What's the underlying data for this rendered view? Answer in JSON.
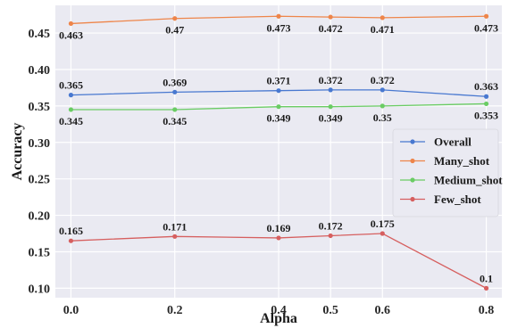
{
  "chart_data": {
    "type": "line",
    "title": "",
    "xlabel": "Alpha",
    "ylabel": "Accuracy",
    "x": [
      0.0,
      0.2,
      0.4,
      0.5,
      0.6,
      0.8
    ],
    "x_tick_labels": [
      "0.0",
      "0.2",
      "0.4",
      "0.5",
      "0.6",
      "0.8"
    ],
    "xlim": [
      -0.03,
      0.83
    ],
    "ylim": [
      0.087,
      0.488
    ],
    "y_ticks": [
      0.1,
      0.15,
      0.2,
      0.25,
      0.3,
      0.35,
      0.4,
      0.45
    ],
    "y_tick_labels": [
      "0.10",
      "0.15",
      "0.20",
      "0.25",
      "0.30",
      "0.35",
      "0.40",
      "0.45"
    ],
    "grid": true,
    "legend_position": "center-right",
    "series": [
      {
        "name": "Overall",
        "color": "#4878d0",
        "values": [
          0.365,
          0.369,
          0.371,
          0.372,
          0.372,
          0.363
        ],
        "labels": [
          "0.365",
          "0.369",
          "0.371",
          "0.372",
          "0.372",
          "0.363"
        ],
        "label_side": "above"
      },
      {
        "name": "Many_shot",
        "color": "#ee854a",
        "values": [
          0.463,
          0.47,
          0.473,
          0.472,
          0.471,
          0.473
        ],
        "labels": [
          "0.463",
          "0.47",
          "0.473",
          "0.472",
          "0.471",
          "0.473"
        ],
        "label_side": "below"
      },
      {
        "name": "Medium_shot",
        "color": "#6acc64",
        "values": [
          0.345,
          0.345,
          0.349,
          0.349,
          0.35,
          0.353
        ],
        "labels": [
          "0.345",
          "0.345",
          "0.349",
          "0.349",
          "0.35",
          "0.353"
        ],
        "label_side": "below"
      },
      {
        "name": "Few_shot",
        "color": "#d65f5f",
        "values": [
          0.165,
          0.171,
          0.169,
          0.172,
          0.175,
          0.1
        ],
        "labels": [
          "0.165",
          "0.171",
          "0.169",
          "0.172",
          "0.175",
          "0.1"
        ],
        "label_side": "above"
      }
    ]
  }
}
